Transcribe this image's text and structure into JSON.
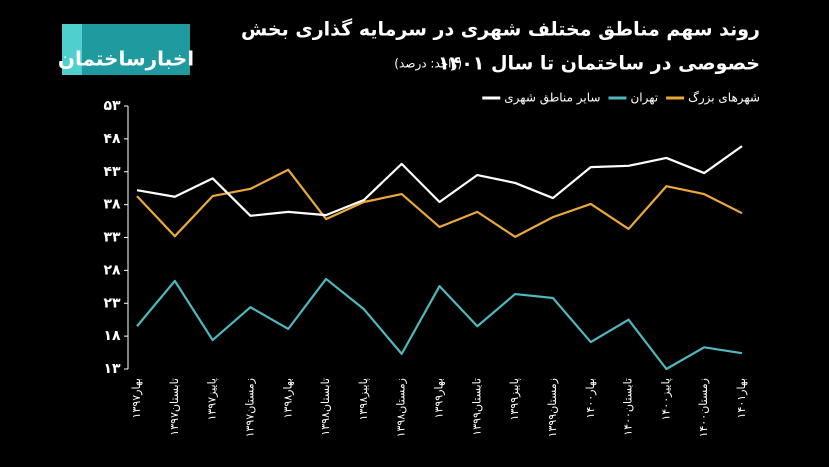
{
  "logo": "اخبارساختمان",
  "chart_data": {
    "type": "line",
    "title": [
      "روند سهم مناطق مختلف شهری در سرمایه گذاری بخش",
      "خصوصی در ساختمان تا سال ۱۴۰۱"
    ],
    "subtitle": "(واحد: درصد)",
    "categories": [
      "بهار۱۳۹۷",
      "تابستان۱۳۹۷",
      "پاییز۱۳۹۷",
      "زمستان۱۳۹۷",
      "بهار۱۳۹۸",
      "تابستان۱۳۹۸",
      "پاییز۱۳۹۸",
      "زمستان۱۳۹۸",
      "بهار۱۳۹۹",
      "تابستان۱۳۹۹",
      "پاییز۱۳۹۹",
      "زمستان۱۳۹۹",
      "بهار۱۴۰۰",
      "تابستان۱۴۰۰",
      "پاییز۱۴۰۰",
      "زمستان۱۴۰۰",
      "بهار۱۴۰۱"
    ],
    "series": [
      {
        "name": "شهرهای بزرگ",
        "color": "#e8a93a",
        "values": [
          39.3,
          33.2,
          39.3,
          40.4,
          43.3,
          35.8,
          38.4,
          39.6,
          34.6,
          36.9,
          33.1,
          36.1,
          38.1,
          34.3,
          40.8,
          39.6,
          36.7
        ]
      },
      {
        "name": "تهران",
        "color": "#4fb8bf",
        "values": [
          19.5,
          26.4,
          17.4,
          22.4,
          19.1,
          26.7,
          22.1,
          15.3,
          25.6,
          19.5,
          24.4,
          23.8,
          17.1,
          20.5,
          13.0,
          16.3,
          15.4
        ]
      },
      {
        "name": "سایر مناطق شهری",
        "color": "#ffffff",
        "values": [
          40.2,
          39.2,
          42.0,
          36.3,
          36.9,
          36.4,
          38.7,
          44.2,
          38.4,
          42.5,
          41.3,
          39.0,
          43.7,
          43.9,
          45.1,
          42.8,
          46.9
        ]
      }
    ],
    "ylim": [
      13,
      53
    ],
    "yticks": [
      {
        "value": 13,
        "label": "۱۳"
      },
      {
        "value": 18,
        "label": "۱۸"
      },
      {
        "value": 23,
        "label": "۲۳"
      },
      {
        "value": 28,
        "label": "۲۸"
      },
      {
        "value": 33,
        "label": "۳۳"
      },
      {
        "value": 38,
        "label": "۳۸"
      },
      {
        "value": 43,
        "label": "۴۳"
      },
      {
        "value": 48,
        "label": "۴۸"
      },
      {
        "value": 53,
        "label": "۵۳"
      }
    ],
    "grid": false
  }
}
